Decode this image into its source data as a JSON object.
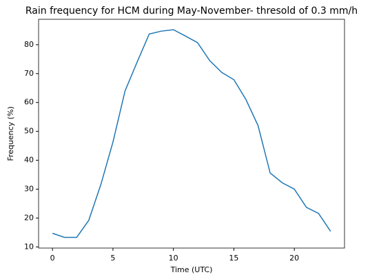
{
  "chart_data": {
    "type": "line",
    "title": "Rain frequency for HCM during May-November- thresold of 0.3 mm/h",
    "x_label": "Time (UTC)",
    "y_label": "Frequency (%)",
    "x": [
      0,
      1,
      2,
      3,
      4,
      5,
      6,
      7,
      8,
      9,
      10,
      11,
      12,
      13,
      14,
      15,
      16,
      17,
      18,
      19,
      20,
      21,
      22,
      23
    ],
    "series": [
      {
        "name": "Frequency",
        "color": "#1f77b4",
        "values": [
          14.7,
          13.3,
          13.3,
          19.2,
          31.6,
          46.3,
          64,
          74,
          83.7,
          84.7,
          85.2,
          83,
          80.7,
          74.5,
          70.4,
          67.9,
          61,
          52,
          35.6,
          32.2,
          30,
          23.7,
          21.6,
          15.4
        ]
      }
    ],
    "xlim": [
      -1.15,
      24.15
    ],
    "xticks": [
      0,
      5,
      10,
      15,
      20
    ],
    "ylim": [
      9.6,
      88.8
    ],
    "yticks": [
      10,
      20,
      30,
      40,
      50,
      60,
      70,
      80
    ],
    "grid": false
  }
}
